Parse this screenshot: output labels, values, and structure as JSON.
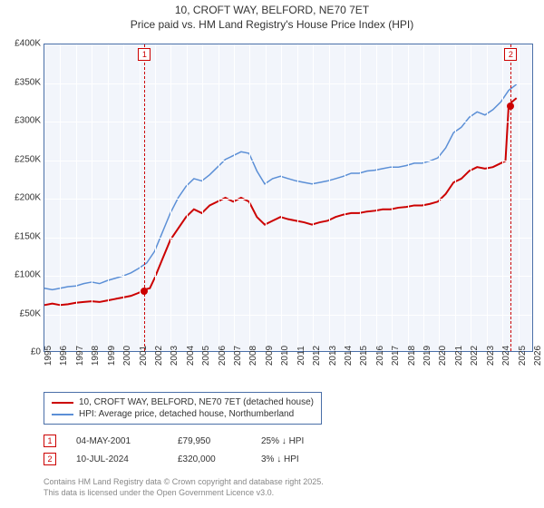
{
  "title_line1": "10, CROFT WAY, BELFORD, NE70 7ET",
  "title_line2": "Price paid vs. HM Land Registry's House Price Index (HPI)",
  "chart": {
    "type": "line",
    "background_color": "#f2f5fb",
    "border_color": "#4a6fa8",
    "grid_color": "#ffffff",
    "x_years": [
      1995,
      1996,
      1997,
      1998,
      1999,
      2000,
      2001,
      2002,
      2003,
      2004,
      2005,
      2006,
      2007,
      2008,
      2009,
      2010,
      2011,
      2012,
      2013,
      2014,
      2015,
      2016,
      2017,
      2018,
      2019,
      2020,
      2021,
      2022,
      2023,
      2024,
      2025,
      2026
    ],
    "xlim": [
      1995,
      2026
    ],
    "ylim": [
      0,
      400000
    ],
    "ytick_step": 50000,
    "ytick_labels": [
      "£0",
      "£50K",
      "£100K",
      "£150K",
      "£200K",
      "£250K",
      "£300K",
      "£350K",
      "£400K"
    ],
    "series": [
      {
        "name": "10, CROFT WAY, BELFORD, NE70 7ET (detached house)",
        "color": "#cc0000",
        "width": 2,
        "pts": [
          [
            1995.0,
            60000
          ],
          [
            1995.5,
            62000
          ],
          [
            1996.0,
            60000
          ],
          [
            1996.5,
            61000
          ],
          [
            1997.0,
            63000
          ],
          [
            1997.5,
            64000
          ],
          [
            1998.0,
            65000
          ],
          [
            1998.5,
            64000
          ],
          [
            1999.0,
            66000
          ],
          [
            1999.5,
            68000
          ],
          [
            2000.0,
            70000
          ],
          [
            2000.5,
            72000
          ],
          [
            2001.0,
            76000
          ],
          [
            2001.3,
            79950
          ],
          [
            2001.7,
            82000
          ],
          [
            2002.0,
            95000
          ],
          [
            2002.5,
            120000
          ],
          [
            2003.0,
            145000
          ],
          [
            2003.5,
            160000
          ],
          [
            2004.0,
            175000
          ],
          [
            2004.5,
            185000
          ],
          [
            2005.0,
            180000
          ],
          [
            2005.5,
            190000
          ],
          [
            2006.0,
            195000
          ],
          [
            2006.5,
            200000
          ],
          [
            2007.0,
            195000
          ],
          [
            2007.5,
            200000
          ],
          [
            2008.0,
            195000
          ],
          [
            2008.5,
            175000
          ],
          [
            2009.0,
            165000
          ],
          [
            2009.5,
            170000
          ],
          [
            2010.0,
            175000
          ],
          [
            2010.5,
            172000
          ],
          [
            2011.0,
            170000
          ],
          [
            2011.5,
            168000
          ],
          [
            2012.0,
            165000
          ],
          [
            2012.5,
            168000
          ],
          [
            2013.0,
            170000
          ],
          [
            2013.5,
            175000
          ],
          [
            2014.0,
            178000
          ],
          [
            2014.5,
            180000
          ],
          [
            2015.0,
            180000
          ],
          [
            2015.5,
            182000
          ],
          [
            2016.0,
            183000
          ],
          [
            2016.5,
            185000
          ],
          [
            2017.0,
            185000
          ],
          [
            2017.5,
            187000
          ],
          [
            2018.0,
            188000
          ],
          [
            2018.5,
            190000
          ],
          [
            2019.0,
            190000
          ],
          [
            2019.5,
            192000
          ],
          [
            2020.0,
            195000
          ],
          [
            2020.5,
            205000
          ],
          [
            2021.0,
            220000
          ],
          [
            2021.5,
            225000
          ],
          [
            2022.0,
            235000
          ],
          [
            2022.5,
            240000
          ],
          [
            2023.0,
            238000
          ],
          [
            2023.5,
            240000
          ],
          [
            2024.0,
            245000
          ],
          [
            2024.3,
            248000
          ],
          [
            2024.5,
            320000
          ],
          [
            2024.7,
            325000
          ],
          [
            2025.0,
            330000
          ]
        ]
      },
      {
        "name": "HPI: Average price, detached house, Northumberland",
        "color": "#5b8fd6",
        "width": 1.5,
        "pts": [
          [
            1995.0,
            82000
          ],
          [
            1995.5,
            80000
          ],
          [
            1996.0,
            82000
          ],
          [
            1996.5,
            84000
          ],
          [
            1997.0,
            85000
          ],
          [
            1997.5,
            88000
          ],
          [
            1998.0,
            90000
          ],
          [
            1998.5,
            88000
          ],
          [
            1999.0,
            92000
          ],
          [
            1999.5,
            95000
          ],
          [
            2000.0,
            98000
          ],
          [
            2000.5,
            102000
          ],
          [
            2001.0,
            108000
          ],
          [
            2001.5,
            115000
          ],
          [
            2002.0,
            130000
          ],
          [
            2002.5,
            155000
          ],
          [
            2003.0,
            180000
          ],
          [
            2003.5,
            200000
          ],
          [
            2004.0,
            215000
          ],
          [
            2004.5,
            225000
          ],
          [
            2005.0,
            222000
          ],
          [
            2005.5,
            230000
          ],
          [
            2006.0,
            240000
          ],
          [
            2006.5,
            250000
          ],
          [
            2007.0,
            255000
          ],
          [
            2007.5,
            260000
          ],
          [
            2008.0,
            258000
          ],
          [
            2008.5,
            235000
          ],
          [
            2009.0,
            218000
          ],
          [
            2009.5,
            225000
          ],
          [
            2010.0,
            228000
          ],
          [
            2010.5,
            225000
          ],
          [
            2011.0,
            222000
          ],
          [
            2011.5,
            220000
          ],
          [
            2012.0,
            218000
          ],
          [
            2012.5,
            220000
          ],
          [
            2013.0,
            222000
          ],
          [
            2013.5,
            225000
          ],
          [
            2014.0,
            228000
          ],
          [
            2014.5,
            232000
          ],
          [
            2015.0,
            232000
          ],
          [
            2015.5,
            235000
          ],
          [
            2016.0,
            236000
          ],
          [
            2016.5,
            238000
          ],
          [
            2017.0,
            240000
          ],
          [
            2017.5,
            240000
          ],
          [
            2018.0,
            242000
          ],
          [
            2018.5,
            245000
          ],
          [
            2019.0,
            245000
          ],
          [
            2019.5,
            248000
          ],
          [
            2020.0,
            252000
          ],
          [
            2020.5,
            265000
          ],
          [
            2021.0,
            285000
          ],
          [
            2021.5,
            292000
          ],
          [
            2022.0,
            305000
          ],
          [
            2022.5,
            312000
          ],
          [
            2023.0,
            308000
          ],
          [
            2023.5,
            315000
          ],
          [
            2024.0,
            325000
          ],
          [
            2024.5,
            340000
          ],
          [
            2025.0,
            348000
          ]
        ]
      }
    ],
    "markers": [
      {
        "num": "1",
        "date": "04-MAY-2001",
        "price": "£79,950",
        "delta": "25% ↓ HPI",
        "year": 2001.34,
        "value": 79950,
        "color": "#cc0000"
      },
      {
        "num": "2",
        "date": "10-JUL-2024",
        "price": "£320,000",
        "delta": "3% ↓ HPI",
        "year": 2024.53,
        "value": 320000,
        "color": "#cc0000"
      }
    ]
  },
  "attribution_line1": "Contains HM Land Registry data © Crown copyright and database right 2025.",
  "attribution_line2": "This data is licensed under the Open Government Licence v3.0."
}
